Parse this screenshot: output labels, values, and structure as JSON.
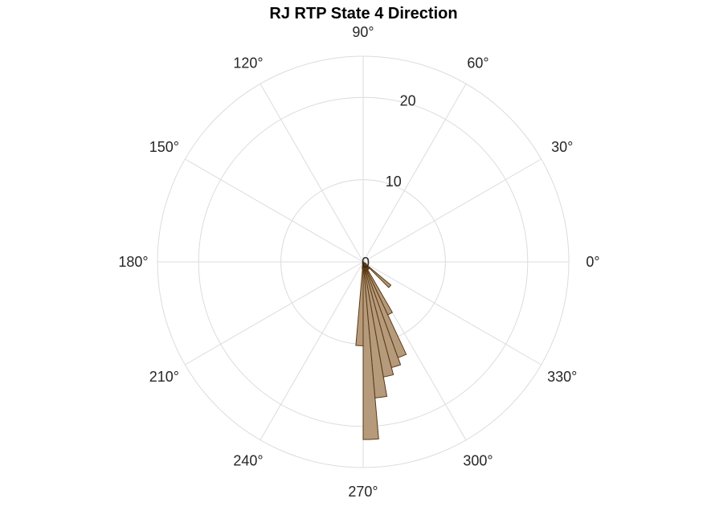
{
  "chart_data": {
    "type": "polar-histogram",
    "title": "RJ  RTP State 4 Direction",
    "angle_ticks": [
      0,
      30,
      60,
      90,
      120,
      150,
      180,
      210,
      240,
      270,
      300,
      330
    ],
    "angle_tick_labels": [
      "0°",
      "30°",
      "60°",
      "90°",
      "120°",
      "150°",
      "180°",
      "210°",
      "240°",
      "270°",
      "300°",
      "330°"
    ],
    "radial_ticks": [
      0,
      10,
      20
    ],
    "radial_tick_labels": [
      "0",
      "10",
      "20"
    ],
    "rlim": [
      0,
      25
    ],
    "bin_width_deg": 5,
    "bins": [
      {
        "start": 260,
        "end": 265,
        "value": 0.8
      },
      {
        "start": 265,
        "end": 270,
        "value": 10.2
      },
      {
        "start": 270,
        "end": 275,
        "value": 21.6
      },
      {
        "start": 275,
        "end": 280,
        "value": 16.6
      },
      {
        "start": 280,
        "end": 285,
        "value": 14.2
      },
      {
        "start": 285,
        "end": 290,
        "value": 13.3
      },
      {
        "start": 290,
        "end": 295,
        "value": 12.4
      },
      {
        "start": 295,
        "end": 300,
        "value": 7.1
      },
      {
        "start": 300,
        "end": 305,
        "value": 1.1
      },
      {
        "start": 305,
        "end": 310,
        "value": 1.1
      },
      {
        "start": 310,
        "end": 315,
        "value": 0.8
      },
      {
        "start": 315,
        "end": 320,
        "value": 4.4
      },
      {
        "start": 320,
        "end": 325,
        "value": 0.5
      },
      {
        "start": 325,
        "end": 330,
        "value": 0.4
      }
    ],
    "colors": {
      "bar_fill": "#b59a7c",
      "bar_edge": "#5c3a12",
      "grid": "#dcdcdc"
    },
    "grid": true
  }
}
